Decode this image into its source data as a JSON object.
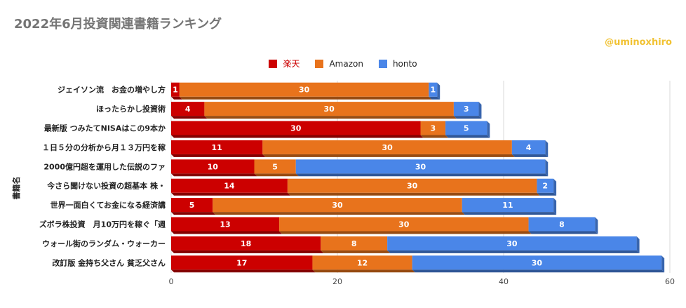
{
  "title": "2022年6月投資関連書籍ランキング",
  "credit": "@uminoxhiro",
  "colors": {
    "rakuten": "#cc0000",
    "amazon": "#e8731c",
    "honto": "#4a86e8",
    "grid": "#d9d9d9"
  },
  "chart_data": {
    "type": "bar",
    "orientation": "horizontal",
    "stacked": true,
    "title": "2022年6月投資関連書籍ランキング",
    "ylabel": "書籍名",
    "xlabel": "",
    "xlim": [
      0,
      60
    ],
    "xticks": [
      0,
      20,
      40,
      60
    ],
    "grid": true,
    "legend_position": "top",
    "categories": [
      "ジェイソン流　お金の増やし方",
      "ほったらかし投資術",
      "最新版 つみたてNISAはこの9本か",
      "１日５分の分析から月１３万円を稼",
      "2000億円超を運用した伝説のファ",
      "今さら聞けない投資の超基本 株・",
      "世界一面白くてお金になる経済講",
      "ズボラ株投資　月10万円を稼ぐ「週",
      "ウォール街のランダム・ウォーカー",
      "改訂版 金持ち父さん 貧乏父さん"
    ],
    "series": [
      {
        "name": "楽天",
        "color": "#cc0000",
        "values": [
          1,
          4,
          30,
          11,
          10,
          14,
          5,
          13,
          18,
          17
        ]
      },
      {
        "name": "Amazon",
        "color": "#e8731c",
        "values": [
          30,
          30,
          3,
          30,
          5,
          30,
          30,
          30,
          8,
          12
        ]
      },
      {
        "name": "honto",
        "color": "#4a86e8",
        "values": [
          1,
          3,
          5,
          4,
          30,
          2,
          11,
          8,
          30,
          30
        ]
      }
    ]
  }
}
